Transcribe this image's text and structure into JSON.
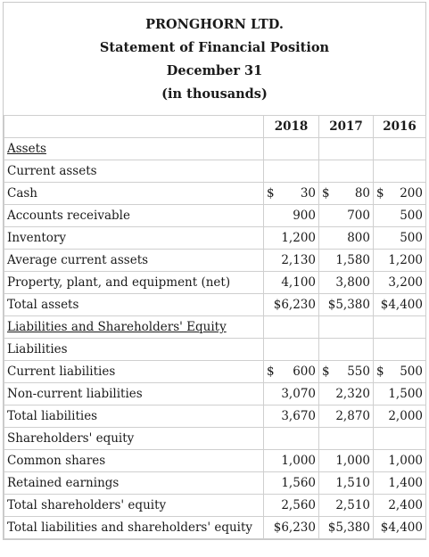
{
  "header": {
    "company": "PRONGHORN LTD.",
    "statement": "Statement of Financial Position",
    "date": "December 31",
    "units": "(in thousands)"
  },
  "years": [
    "2018",
    "2017",
    "2016"
  ],
  "rows": [
    {
      "label": "Assets",
      "underline": true,
      "values": [
        "",
        "",
        ""
      ]
    },
    {
      "label": "Current assets",
      "values": [
        "",
        "",
        ""
      ]
    },
    {
      "label": "Cash",
      "dollar": true,
      "values": [
        "30",
        "80",
        "200"
      ]
    },
    {
      "label": "Accounts receivable",
      "values": [
        "900",
        "700",
        "500"
      ]
    },
    {
      "label": "Inventory",
      "values": [
        "1,200",
        "800",
        "500"
      ]
    },
    {
      "label": "Average current assets",
      "values": [
        "2,130",
        "1,580",
        "1,200"
      ]
    },
    {
      "label": "Property, plant, and equipment (net)",
      "values": [
        "4,100",
        "3,800",
        "3,200"
      ]
    },
    {
      "label": "Total assets",
      "values": [
        "$6,230",
        "$5,380",
        "$4,400"
      ]
    },
    {
      "label": "Liabilities and Shareholders' Equity",
      "underline": true,
      "values": [
        "",
        "",
        ""
      ]
    },
    {
      "label": "Liabilities",
      "values": [
        "",
        "",
        ""
      ]
    },
    {
      "label": "Current liabilities",
      "dollar": true,
      "values": [
        "600",
        "550",
        "500"
      ]
    },
    {
      "label": "Non-current liabilities",
      "values": [
        "3,070",
        "2,320",
        "1,500"
      ]
    },
    {
      "label": "Total liabilities",
      "values": [
        "3,670",
        "2,870",
        "2,000"
      ]
    },
    {
      "label": "Shareholders' equity",
      "values": [
        "",
        "",
        ""
      ]
    },
    {
      "label": "Common shares",
      "values": [
        "1,000",
        "1,000",
        "1,000"
      ]
    },
    {
      "label": "Retained earnings",
      "values": [
        "1,560",
        "1,510",
        "1,400"
      ]
    },
    {
      "label": "Total shareholders' equity",
      "values": [
        "2,560",
        "2,510",
        "2,400"
      ]
    },
    {
      "label": "Total liabilities and shareholders' equity",
      "values": [
        "$6,230",
        "$5,380",
        "$4,400"
      ]
    }
  ]
}
